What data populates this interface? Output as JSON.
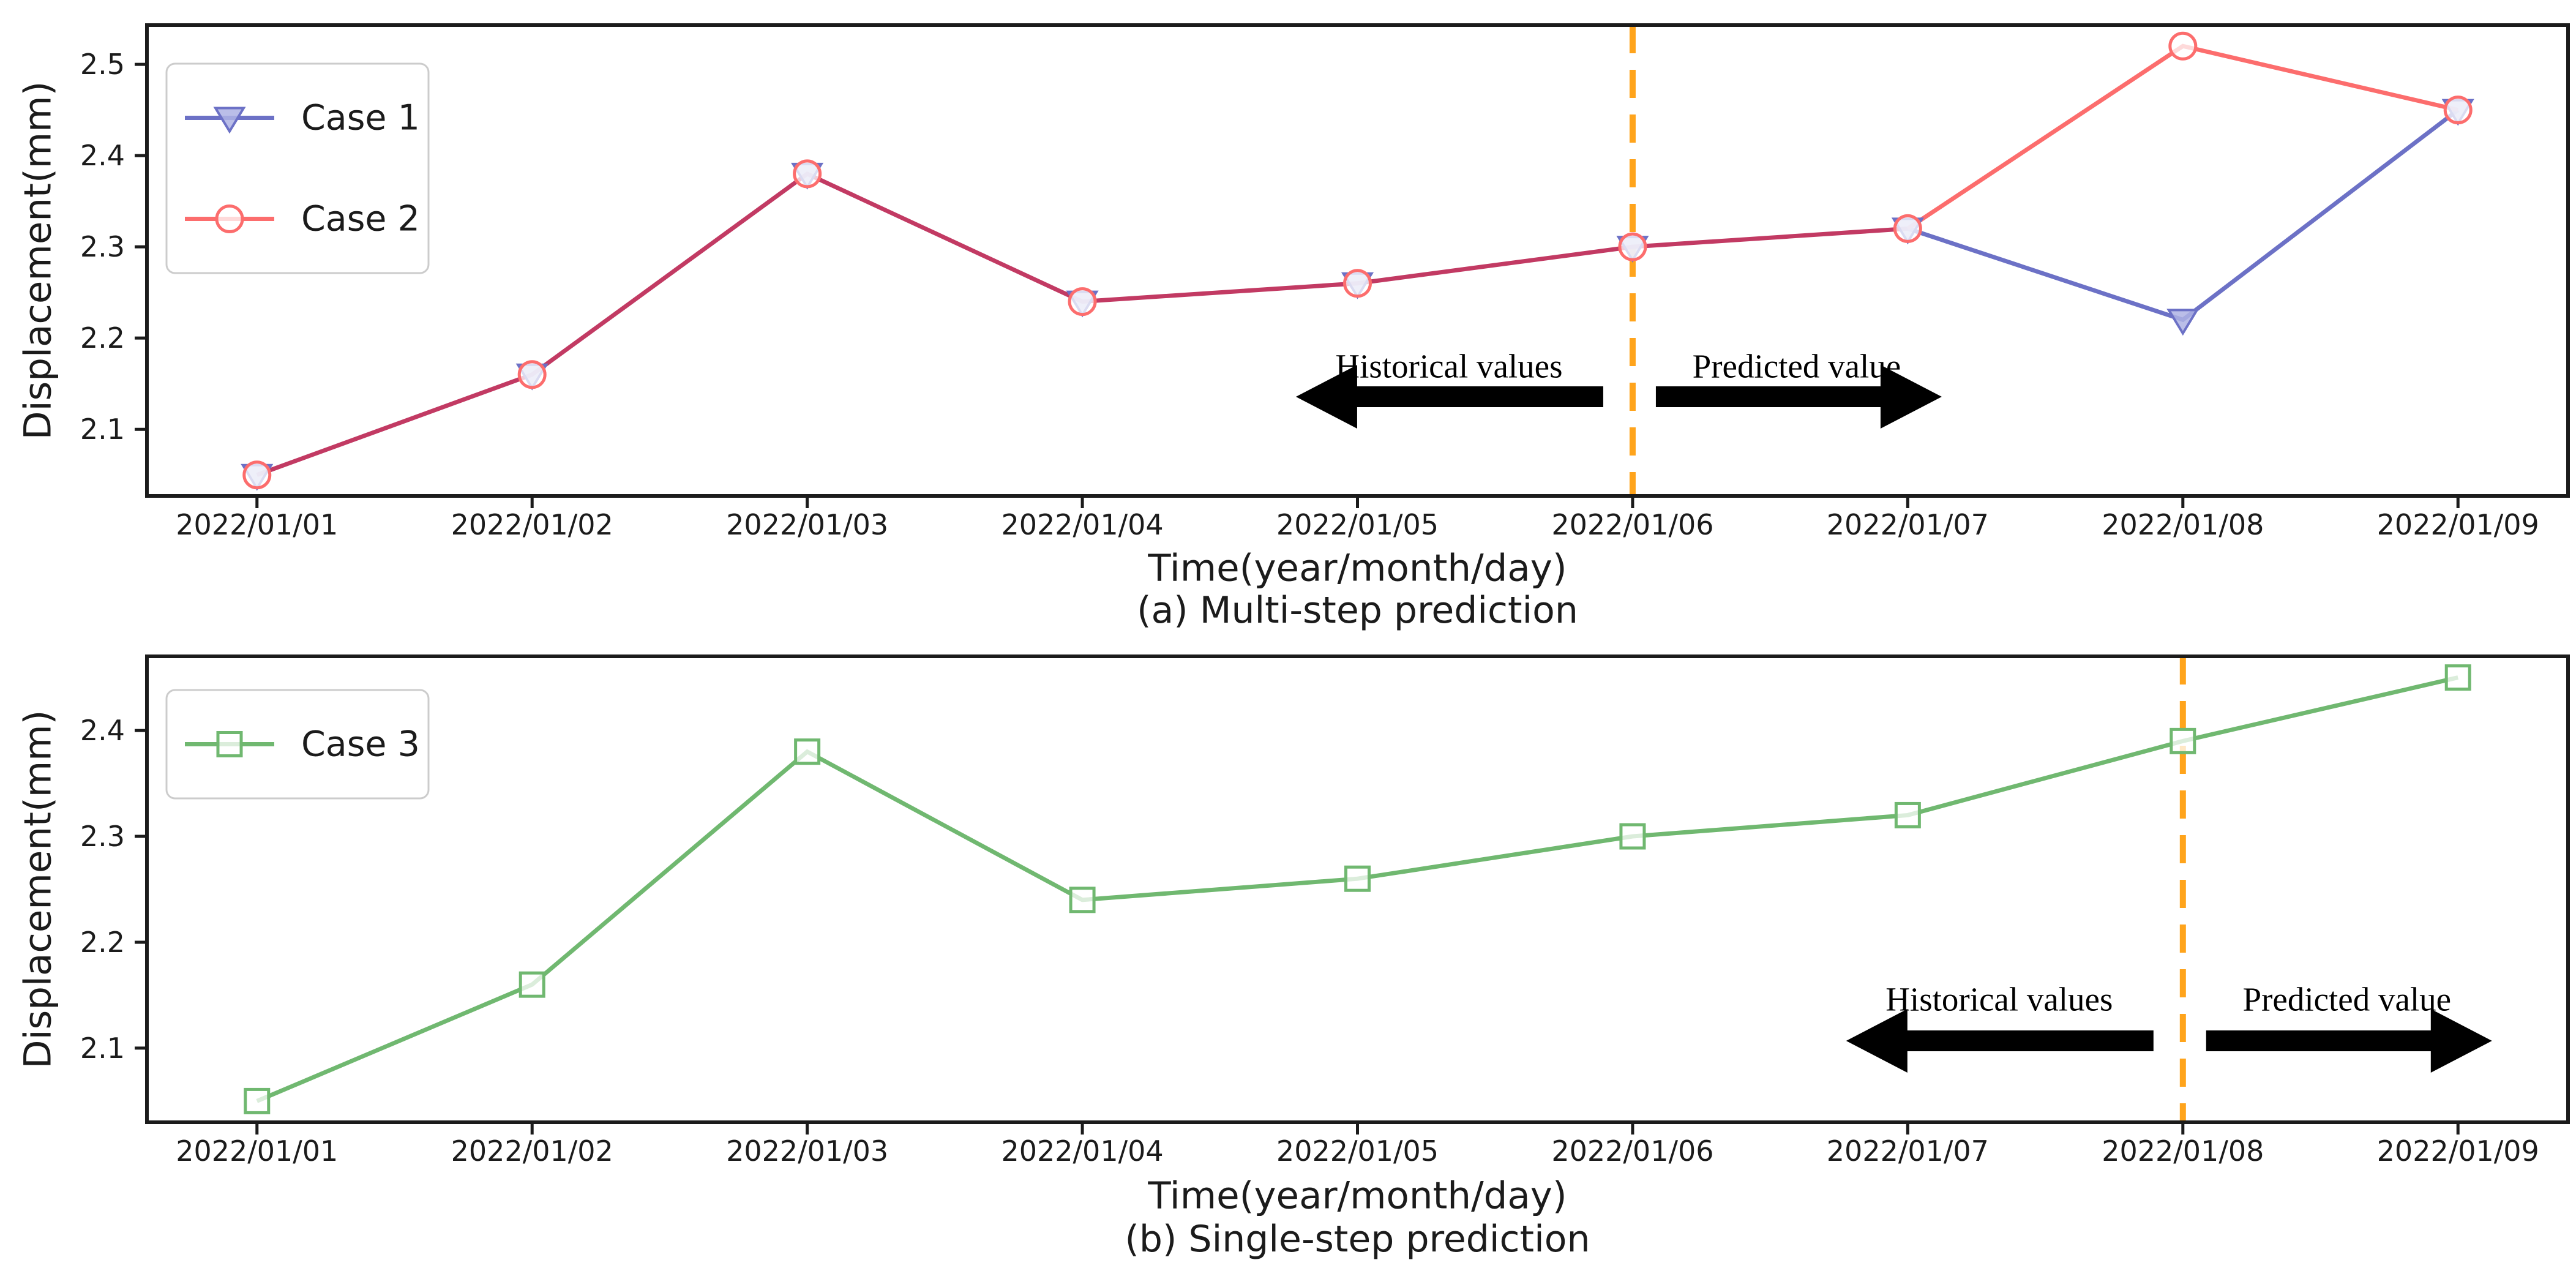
{
  "figure": {
    "background": "#ffffff",
    "axis_color": "#1b1b1b",
    "arrow_color": "#000000"
  },
  "chart_data": [
    {
      "type": "line",
      "caption": "(a) Multi-step prediction",
      "xlabel": "Time(year/month/day)",
      "ylabel": "Displacement(mm)",
      "categories": [
        "2022/01/01",
        "2022/01/02",
        "2022/01/03",
        "2022/01/04",
        "2022/01/05",
        "2022/01/06",
        "2022/01/07",
        "2022/01/08",
        "2022/01/09"
      ],
      "series": [
        {
          "name": "Case 1",
          "color": "#6c71c6",
          "marker": "triangle-down",
          "values": [
            2.05,
            2.16,
            2.38,
            2.24,
            2.26,
            2.3,
            2.32,
            2.22,
            2.45
          ]
        },
        {
          "name": "Case 2",
          "color": "#fc6d6d",
          "marker": "circle",
          "values": [
            2.05,
            2.16,
            2.38,
            2.24,
            2.26,
            2.3,
            2.32,
            2.52,
            2.45
          ]
        }
      ],
      "overlap_color": "#c23a63",
      "ylim": [
        2.027,
        2.543
      ],
      "yticks": [
        "2.1",
        "2.2",
        "2.3",
        "2.4",
        "2.5"
      ],
      "grid": false,
      "legend_position": "upper left",
      "divider": {
        "category": "2022/01/06",
        "color": "#ffa41c",
        "style": "dashed"
      },
      "annotations": {
        "historical": "Historical values",
        "predicted": "Predicted value"
      }
    },
    {
      "type": "line",
      "caption": "(b) Single-step prediction",
      "xlabel": "Time(year/month/day)",
      "ylabel": "Displacement(mm)",
      "categories": [
        "2022/01/01",
        "2022/01/02",
        "2022/01/03",
        "2022/01/04",
        "2022/01/05",
        "2022/01/06",
        "2022/01/07",
        "2022/01/08",
        "2022/01/09"
      ],
      "series": [
        {
          "name": "Case 3",
          "color": "#70b870",
          "marker": "square",
          "values": [
            2.05,
            2.16,
            2.38,
            2.24,
            2.26,
            2.3,
            2.32,
            2.39,
            2.45
          ]
        }
      ],
      "overlap_color": "#70b870",
      "ylim": [
        2.03,
        2.47
      ],
      "yticks": [
        "2.1",
        "2.2",
        "2.3",
        "2.4"
      ],
      "grid": false,
      "legend_position": "upper left",
      "divider": {
        "category": "2022/01/08",
        "color": "#ffa41c",
        "style": "dashed"
      },
      "annotations": {
        "historical": "Historical values",
        "predicted": "Predicted value"
      }
    }
  ]
}
